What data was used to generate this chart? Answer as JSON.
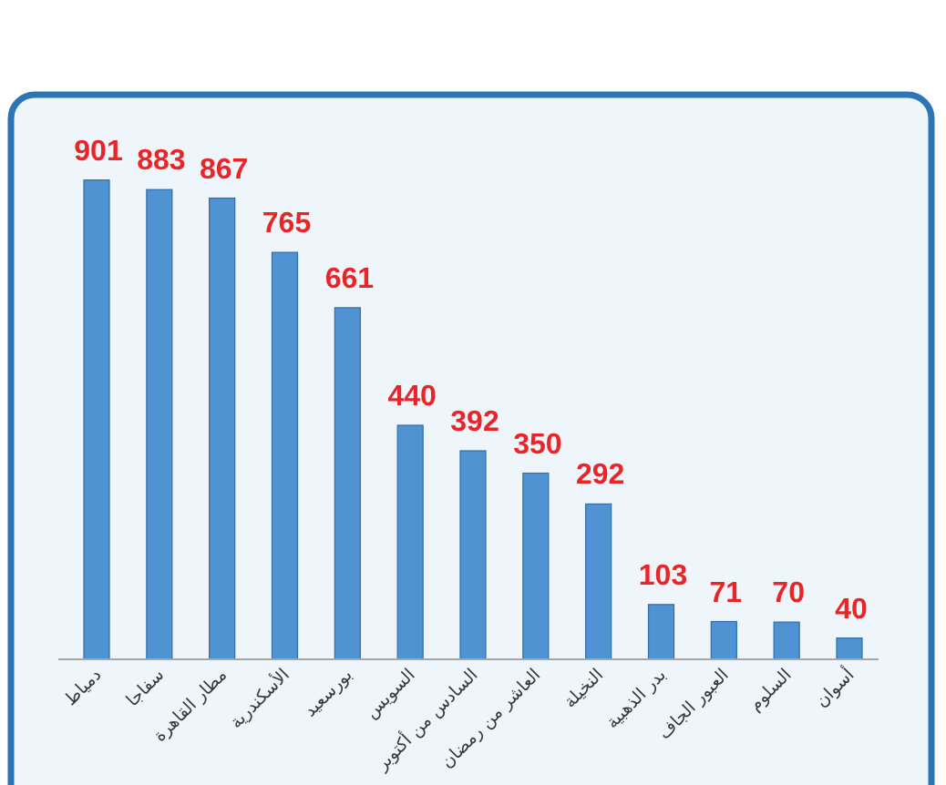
{
  "chart_data": {
    "type": "bar",
    "categories": [
      "دمياط",
      "سفاجا",
      "مطار القاهرة",
      "الأسكندرية",
      "بورسعيد",
      "السويس",
      "السادس من أكتوبر",
      "العاشر من رمضان",
      "النخيلة",
      "بدر الذهبية",
      "العبور الجاف",
      "السلوم",
      "أسوان"
    ],
    "values": [
      901,
      883,
      867,
      765,
      661,
      440,
      392,
      350,
      292,
      103,
      71,
      70,
      40
    ],
    "color": "#4f93d2",
    "data_labels": true
  }
}
